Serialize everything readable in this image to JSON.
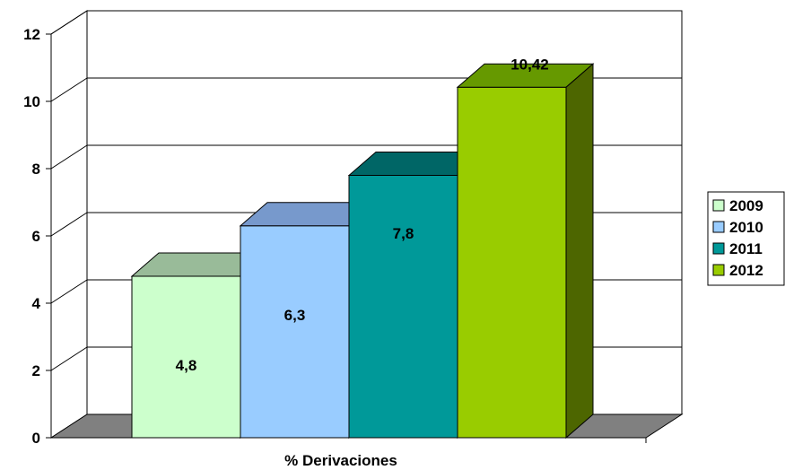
{
  "chart_data": {
    "type": "bar",
    "title": "",
    "xlabel": "% Derivaciones",
    "ylabel": "",
    "ylim": [
      0,
      12
    ],
    "yticks": [
      0,
      2,
      4,
      6,
      8,
      10,
      12
    ],
    "ytick_labels": [
      "0",
      "2",
      "4",
      "6",
      "8",
      "10",
      "12"
    ],
    "grid": true,
    "style": "3d-clustered-columns",
    "legend_position": "right",
    "series": [
      {
        "name": "2009",
        "values": [
          4.8
        ],
        "label": "4,8",
        "color": "#CCFFCC",
        "top_color": "#99BB99",
        "side_color": "#669966"
      },
      {
        "name": "2010",
        "values": [
          6.3
        ],
        "label": "6,3",
        "color": "#99CCFF",
        "top_color": "#7799CC",
        "side_color": "#557799"
      },
      {
        "name": "2011",
        "values": [
          7.8
        ],
        "label": "7,8",
        "color": "#009999",
        "top_color": "#006666",
        "side_color": "#005555"
      },
      {
        "name": "2012",
        "values": [
          10.42
        ],
        "label": "10,42",
        "color": "#99CC00",
        "top_color": "#669900",
        "side_color": "#4D6600"
      }
    ],
    "colors": {
      "floor": "#808080",
      "gridline": "#000000",
      "wall": "#ffffff"
    }
  }
}
